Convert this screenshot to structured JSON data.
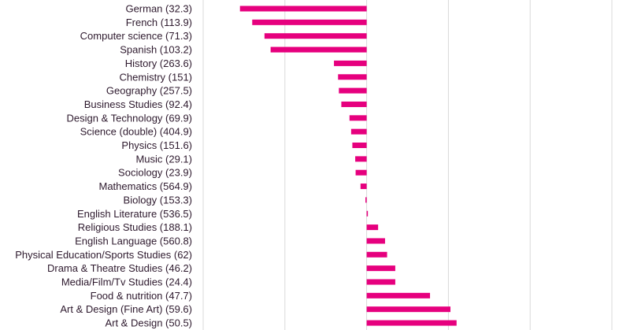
{
  "chart_data": {
    "type": "bar",
    "orientation": "horizontal",
    "categories": [
      "German (32.3)",
      "French (113.9)",
      "Computer science (71.3)",
      "Spanish (103.2)",
      "History (263.6)",
      "Chemistry (151)",
      "Geography (257.5)",
      "Business Studies (92.4)",
      "Design & Technology (69.9)",
      "Science (double) (404.9)",
      "Physics (151.6)",
      "Music (29.1)",
      "Sociology (23.9)",
      "Mathematics (564.9)",
      "Biology (153.3)",
      "English Literature (536.5)",
      "Religious Studies (188.1)",
      "English Language (560.8)",
      "Physical Education/Sports Studies (62)",
      "Drama & Theatre Studies (46.2)",
      "Media/Film/Tv Studies (24.4)",
      "Food & nutrition (47.7)",
      "Art & Design (Fine Art) (59.6)",
      "Art & Design (50.5)"
    ],
    "values": [
      -3.1,
      -2.8,
      -2.5,
      -2.35,
      -0.8,
      -0.7,
      -0.68,
      -0.62,
      -0.42,
      -0.38,
      -0.35,
      -0.28,
      -0.27,
      -0.15,
      -0.03,
      0.03,
      0.28,
      0.45,
      0.5,
      0.7,
      0.7,
      1.55,
      2.05,
      2.2
    ],
    "xlim": [
      -4,
      6
    ],
    "gridlines": [
      -4,
      -2,
      0,
      2,
      4,
      6
    ],
    "grid": true,
    "bar_color": "#e6007e",
    "grid_color": "#d9d9d9",
    "label_color": "#2e1a2e"
  }
}
